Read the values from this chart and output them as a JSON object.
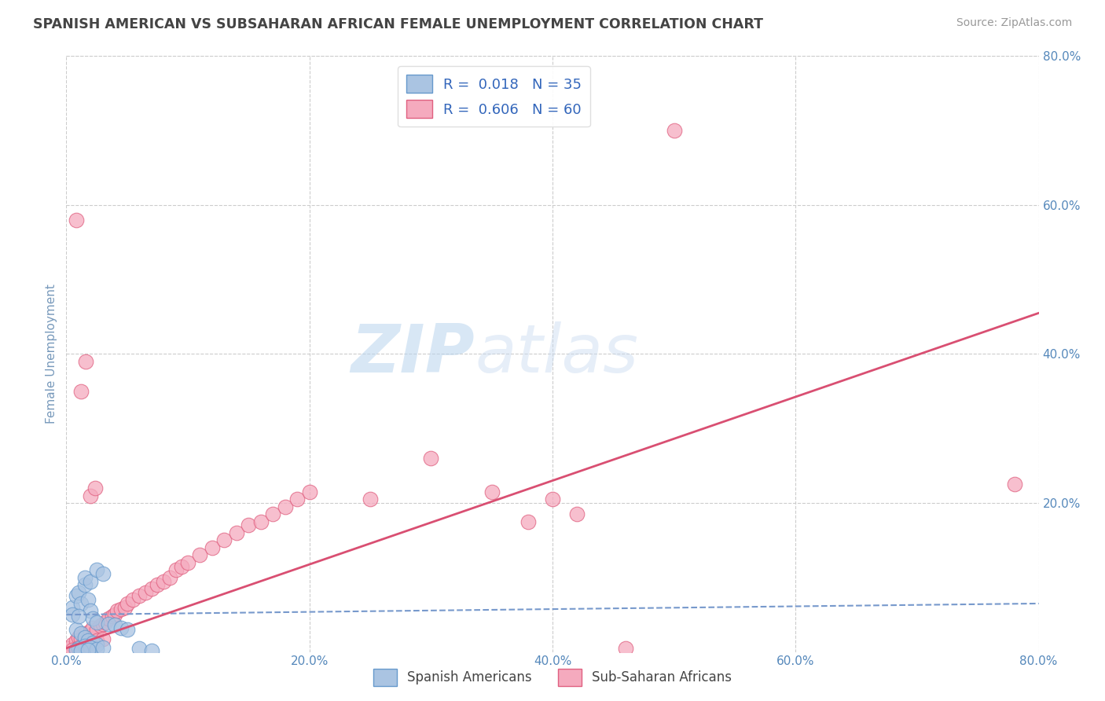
{
  "title": "SPANISH AMERICAN VS SUBSAHARAN AFRICAN FEMALE UNEMPLOYMENT CORRELATION CHART",
  "source_text": "Source: ZipAtlas.com",
  "ylabel": "Female Unemployment",
  "xlim": [
    0.0,
    0.8
  ],
  "ylim": [
    0.0,
    0.8
  ],
  "xtick_labels": [
    "0.0%",
    "20.0%",
    "40.0%",
    "60.0%",
    "80.0%"
  ],
  "xtick_vals": [
    0.0,
    0.2,
    0.4,
    0.6,
    0.8
  ],
  "ytick_labels": [
    "20.0%",
    "40.0%",
    "60.0%",
    "80.0%"
  ],
  "ytick_vals": [
    0.2,
    0.4,
    0.6,
    0.8
  ],
  "watermark_zip": "ZIP",
  "watermark_atlas": "atlas",
  "legend_r1": "R =  0.018",
  "legend_n1": "N = 35",
  "legend_r2": "R =  0.606",
  "legend_n2": "N = 60",
  "blue_color": "#aac4e2",
  "pink_color": "#f5aabe",
  "blue_edge": "#6699cc",
  "pink_edge": "#e06080",
  "blue_line_color": "#7799cc",
  "pink_line_color": "#d94f72",
  "title_color": "#444444",
  "source_color": "#999999",
  "axis_label_color": "#7799bb",
  "tick_color": "#5588bb",
  "legend_text_color": "#3366bb",
  "background_color": "#ffffff",
  "grid_color": "#cccccc",
  "blue_scatter_x": [
    0.005,
    0.008,
    0.01,
    0.012,
    0.015,
    0.018,
    0.02,
    0.022,
    0.025,
    0.008,
    0.012,
    0.015,
    0.018,
    0.022,
    0.025,
    0.01,
    0.015,
    0.02,
    0.025,
    0.03,
    0.015,
    0.02,
    0.025,
    0.03,
    0.005,
    0.01,
    0.035,
    0.04,
    0.045,
    0.05,
    0.008,
    0.012,
    0.018,
    0.06,
    0.07
  ],
  "blue_scatter_y": [
    0.06,
    0.075,
    0.08,
    0.065,
    0.09,
    0.07,
    0.055,
    0.045,
    0.04,
    0.03,
    0.025,
    0.02,
    0.015,
    0.012,
    0.01,
    0.005,
    0.008,
    0.006,
    0.004,
    0.006,
    0.1,
    0.095,
    0.11,
    0.105,
    0.05,
    0.048,
    0.038,
    0.036,
    0.032,
    0.03,
    0.003,
    0.002,
    0.003,
    0.005,
    0.002
  ],
  "pink_scatter_x": [
    0.002,
    0.005,
    0.008,
    0.01,
    0.012,
    0.015,
    0.018,
    0.02,
    0.022,
    0.025,
    0.028,
    0.03,
    0.032,
    0.035,
    0.038,
    0.04,
    0.042,
    0.045,
    0.048,
    0.05,
    0.055,
    0.06,
    0.065,
    0.07,
    0.075,
    0.08,
    0.085,
    0.09,
    0.095,
    0.1,
    0.11,
    0.12,
    0.13,
    0.14,
    0.15,
    0.16,
    0.17,
    0.18,
    0.19,
    0.2,
    0.005,
    0.01,
    0.015,
    0.02,
    0.025,
    0.03,
    0.25,
    0.3,
    0.35,
    0.4,
    0.008,
    0.012,
    0.016,
    0.02,
    0.024,
    0.38,
    0.42,
    0.46,
    0.5,
    0.78
  ],
  "pink_scatter_y": [
    0.005,
    0.01,
    0.015,
    0.02,
    0.018,
    0.025,
    0.022,
    0.028,
    0.032,
    0.03,
    0.035,
    0.038,
    0.04,
    0.045,
    0.048,
    0.05,
    0.055,
    0.058,
    0.06,
    0.065,
    0.07,
    0.075,
    0.08,
    0.085,
    0.09,
    0.095,
    0.1,
    0.11,
    0.115,
    0.12,
    0.13,
    0.14,
    0.15,
    0.16,
    0.17,
    0.175,
    0.185,
    0.195,
    0.205,
    0.215,
    0.003,
    0.006,
    0.008,
    0.012,
    0.015,
    0.018,
    0.205,
    0.26,
    0.215,
    0.205,
    0.58,
    0.35,
    0.39,
    0.21,
    0.22,
    0.175,
    0.185,
    0.005,
    0.7,
    0.225
  ],
  "blue_line_x": [
    0.0,
    0.8
  ],
  "blue_line_y": [
    0.05,
    0.065
  ],
  "pink_line_x": [
    0.0,
    0.8
  ],
  "pink_line_y": [
    0.005,
    0.455
  ]
}
